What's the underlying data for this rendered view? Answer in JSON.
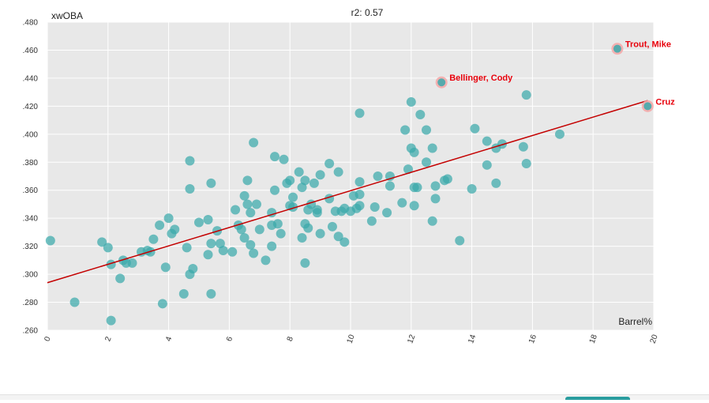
{
  "chart_data": {
    "type": "scatter",
    "title": "r2: 0.57",
    "xlabel": "Barrel%",
    "ylabel": "xwOBA",
    "xlim": [
      0,
      20
    ],
    "ylim": [
      0.26,
      0.48
    ],
    "xticks": [
      0,
      2,
      4,
      6,
      8,
      10,
      12,
      14,
      16,
      18,
      20
    ],
    "xtick_labels": [
      "0",
      "2",
      "4",
      "6",
      "8",
      "10",
      "12",
      "14",
      "16",
      "18",
      "20"
    ],
    "yticks": [
      0.26,
      0.28,
      0.3,
      0.32,
      0.34,
      0.36,
      0.38,
      0.4,
      0.42,
      0.44,
      0.46,
      0.48
    ],
    "ytick_labels": [
      ".260",
      ".280",
      ".300",
      ".320",
      ".340",
      ".360",
      ".380",
      ".400",
      ".420",
      ".440",
      ".460",
      ".480"
    ],
    "grid": true,
    "colors": {
      "background": "#e8e8e8",
      "grid": "#ffffff",
      "point": "#3aa9ab",
      "highlight_ring": "#f4a6a6",
      "trendline": "#c40000",
      "annotation": "#e8000b"
    },
    "trendline": {
      "x": [
        0,
        19.8
      ],
      "y": [
        0.294,
        0.424
      ]
    },
    "points": [
      [
        0.1,
        0.324
      ],
      [
        0.9,
        0.28
      ],
      [
        1.8,
        0.323
      ],
      [
        2.0,
        0.319
      ],
      [
        2.1,
        0.307
      ],
      [
        2.1,
        0.267
      ],
      [
        2.4,
        0.297
      ],
      [
        2.5,
        0.31
      ],
      [
        2.6,
        0.308
      ],
      [
        2.8,
        0.308
      ],
      [
        3.1,
        0.316
      ],
      [
        3.3,
        0.317
      ],
      [
        3.4,
        0.316
      ],
      [
        3.5,
        0.325
      ],
      [
        3.7,
        0.335
      ],
      [
        3.8,
        0.279
      ],
      [
        3.9,
        0.305
      ],
      [
        4.0,
        0.34
      ],
      [
        4.1,
        0.329
      ],
      [
        4.2,
        0.332
      ],
      [
        4.5,
        0.286
      ],
      [
        4.6,
        0.319
      ],
      [
        4.7,
        0.381
      ],
      [
        4.7,
        0.361
      ],
      [
        4.7,
        0.3
      ],
      [
        4.8,
        0.304
      ],
      [
        5.0,
        0.337
      ],
      [
        5.3,
        0.314
      ],
      [
        5.3,
        0.339
      ],
      [
        5.4,
        0.365
      ],
      [
        5.4,
        0.322
      ],
      [
        5.4,
        0.286
      ],
      [
        5.6,
        0.331
      ],
      [
        5.7,
        0.322
      ],
      [
        5.8,
        0.317
      ],
      [
        6.1,
        0.316
      ],
      [
        6.2,
        0.346
      ],
      [
        6.3,
        0.335
      ],
      [
        6.4,
        0.332
      ],
      [
        6.5,
        0.356
      ],
      [
        6.5,
        0.326
      ],
      [
        6.6,
        0.367
      ],
      [
        6.6,
        0.35
      ],
      [
        6.7,
        0.321
      ],
      [
        6.7,
        0.344
      ],
      [
        6.8,
        0.394
      ],
      [
        6.8,
        0.315
      ],
      [
        6.9,
        0.35
      ],
      [
        7.0,
        0.332
      ],
      [
        7.2,
        0.31
      ],
      [
        7.4,
        0.344
      ],
      [
        7.4,
        0.335
      ],
      [
        7.4,
        0.32
      ],
      [
        7.5,
        0.384
      ],
      [
        7.5,
        0.36
      ],
      [
        7.6,
        0.336
      ],
      [
        7.7,
        0.329
      ],
      [
        7.8,
        0.382
      ],
      [
        7.9,
        0.365
      ],
      [
        8.0,
        0.367
      ],
      [
        8.0,
        0.349
      ],
      [
        8.1,
        0.355
      ],
      [
        8.1,
        0.348
      ],
      [
        8.3,
        0.373
      ],
      [
        8.4,
        0.362
      ],
      [
        8.4,
        0.326
      ],
      [
        8.5,
        0.367
      ],
      [
        8.5,
        0.336
      ],
      [
        8.5,
        0.308
      ],
      [
        8.6,
        0.346
      ],
      [
        8.6,
        0.333
      ],
      [
        8.7,
        0.35
      ],
      [
        8.8,
        0.365
      ],
      [
        8.9,
        0.346
      ],
      [
        8.9,
        0.344
      ],
      [
        9.0,
        0.371
      ],
      [
        9.0,
        0.329
      ],
      [
        9.3,
        0.379
      ],
      [
        9.3,
        0.354
      ],
      [
        9.4,
        0.334
      ],
      [
        9.5,
        0.345
      ],
      [
        9.6,
        0.373
      ],
      [
        9.6,
        0.327
      ],
      [
        9.7,
        0.345
      ],
      [
        9.8,
        0.347
      ],
      [
        9.8,
        0.323
      ],
      [
        10.0,
        0.345
      ],
      [
        10.1,
        0.356
      ],
      [
        10.2,
        0.347
      ],
      [
        10.3,
        0.415
      ],
      [
        10.3,
        0.366
      ],
      [
        10.3,
        0.357
      ],
      [
        10.3,
        0.349
      ],
      [
        10.7,
        0.338
      ],
      [
        10.8,
        0.348
      ],
      [
        10.9,
        0.37
      ],
      [
        11.2,
        0.344
      ],
      [
        11.3,
        0.37
      ],
      [
        11.3,
        0.363
      ],
      [
        11.7,
        0.351
      ],
      [
        11.8,
        0.403
      ],
      [
        11.9,
        0.375
      ],
      [
        12.0,
        0.423
      ],
      [
        12.0,
        0.39
      ],
      [
        12.1,
        0.387
      ],
      [
        12.1,
        0.362
      ],
      [
        12.1,
        0.349
      ],
      [
        12.2,
        0.362
      ],
      [
        12.3,
        0.414
      ],
      [
        12.5,
        0.403
      ],
      [
        12.5,
        0.38
      ],
      [
        12.7,
        0.39
      ],
      [
        12.7,
        0.338
      ],
      [
        12.8,
        0.363
      ],
      [
        12.8,
        0.354
      ],
      [
        13.1,
        0.367
      ],
      [
        13.2,
        0.368
      ],
      [
        13.6,
        0.324
      ],
      [
        14.0,
        0.361
      ],
      [
        14.1,
        0.404
      ],
      [
        14.5,
        0.395
      ],
      [
        14.5,
        0.378
      ],
      [
        14.8,
        0.39
      ],
      [
        14.8,
        0.365
      ],
      [
        15.0,
        0.393
      ],
      [
        15.7,
        0.391
      ],
      [
        15.8,
        0.428
      ],
      [
        15.8,
        0.379
      ],
      [
        16.9,
        0.4
      ]
    ],
    "highlighted": [
      {
        "label": "Trout, Mike",
        "x": 18.8,
        "y": 0.461
      },
      {
        "label": "Bellinger, Cody",
        "x": 13.0,
        "y": 0.437
      },
      {
        "label": "Cruz",
        "x": 19.8,
        "y": 0.42
      }
    ]
  }
}
